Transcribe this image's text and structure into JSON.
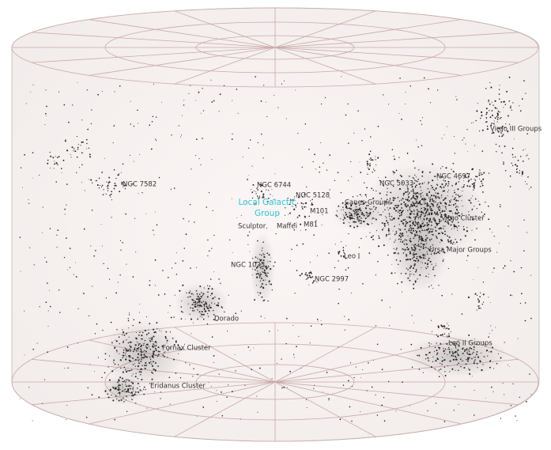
{
  "labels": [
    "NGC 7582",
    "NGC 6744",
    "NGC 5128",
    "NGC 5033",
    "NGC 4697",
    "Virgo III Groups",
    "Local Galactic",
    "Group",
    "M101",
    "M81",
    "Sculptor",
    "Maffei",
    "Canes Groups",
    "Virgo Cluster",
    "Ursa Major Groups",
    "Leo I",
    "NGC 1023",
    "NGC 2997",
    "Dorado",
    "Fornax Cluster",
    "Leo II Groups",
    "Eridanus Cluster"
  ]
}
